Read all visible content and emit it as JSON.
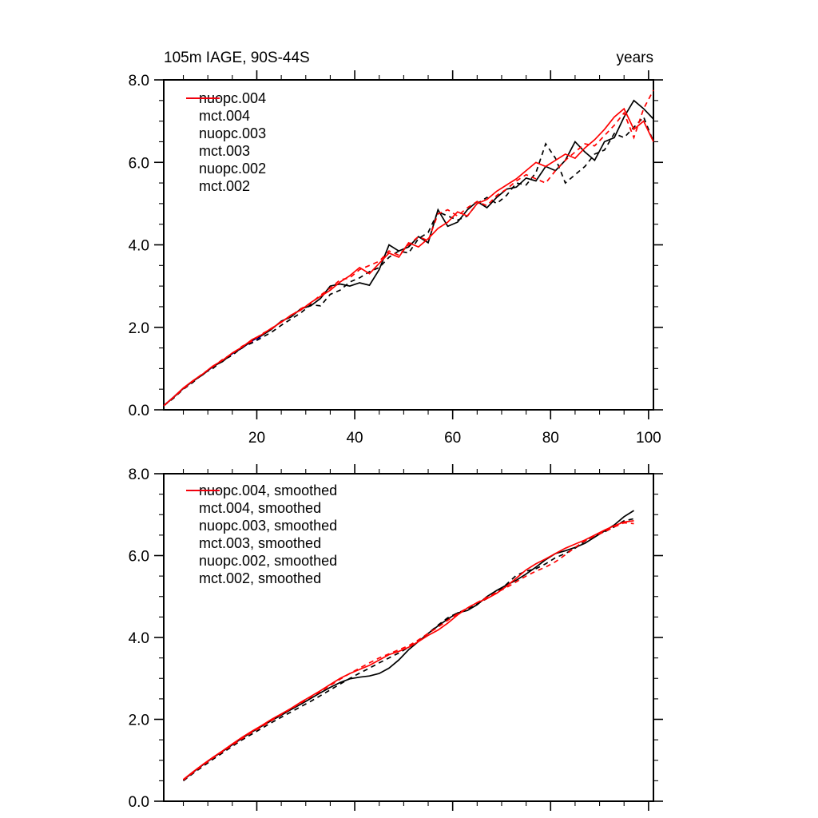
{
  "page": {
    "background": "#ffffff"
  },
  "colors": {
    "black": "#000000",
    "blue": "#0000ff",
    "red": "#ff0000",
    "axis": "#000000"
  },
  "chart_data": [
    {
      "type": "line",
      "title": "105m IAGE, 90S-44S",
      "right_label": "years",
      "xlim": [
        1,
        101
      ],
      "ylim": [
        0,
        8
      ],
      "x_ticks_major": [
        20,
        40,
        60,
        80,
        100
      ],
      "x_tick_labels": [
        "20",
        "40",
        "60",
        "80",
        "100"
      ],
      "x_tick_minor_step": 5,
      "y_ticks_major": [
        0,
        2,
        4,
        6,
        8
      ],
      "y_tick_labels": [
        "0.0",
        "2.0",
        "4.0",
        "6.0",
        "8.0"
      ],
      "y_tick_minor_step": 0.5,
      "show_x_labels": true,
      "grid": false,
      "legend_position": "top-left-inside",
      "series": [
        {
          "name": "nuopc.004",
          "color": "#000000",
          "dash": false,
          "x_start": 1,
          "x_step": 2,
          "values": [
            0.1,
            0.3,
            0.52,
            0.7,
            0.85,
            1.05,
            1.17,
            1.37,
            1.5,
            1.68,
            1.8,
            1.95,
            2.15,
            2.25,
            2.45,
            2.52,
            2.7,
            3.0,
            3.05,
            3.0,
            3.08,
            3.02,
            3.4,
            4.0,
            3.85,
            3.95,
            4.2,
            4.05,
            4.85,
            4.45,
            4.55,
            4.85,
            5.05,
            4.9,
            5.15,
            5.35,
            5.4,
            5.62,
            5.55,
            5.9,
            5.8,
            6.05,
            6.5,
            6.25,
            6.05,
            6.5,
            6.6,
            7.1,
            7.5,
            7.3,
            7.05
          ]
        },
        {
          "name": "mct.004",
          "color": "#000000",
          "dash": true,
          "x_start": 1,
          "x_step": 2,
          "values": [
            0.1,
            0.28,
            0.5,
            0.67,
            0.88,
            1.0,
            1.2,
            1.32,
            1.52,
            1.62,
            1.75,
            1.88,
            2.05,
            2.2,
            2.35,
            2.55,
            2.52,
            2.8,
            2.9,
            3.1,
            3.2,
            3.35,
            3.45,
            3.7,
            3.85,
            3.8,
            4.15,
            4.3,
            4.8,
            4.7,
            4.6,
            4.7,
            5.0,
            5.15,
            5.0,
            5.2,
            5.5,
            5.45,
            5.75,
            6.45,
            6.1,
            5.5,
            5.7,
            5.9,
            6.2,
            6.3,
            6.7,
            6.6,
            6.85,
            7.1,
            6.5
          ]
        },
        {
          "name": "nuopc.003",
          "color": "#0000ff",
          "dash": false,
          "x_start": 1,
          "x_step": 2,
          "values": [
            0.1,
            0.31,
            0.52,
            0.7,
            0.86,
            1.04,
            1.19,
            1.36,
            1.5,
            1.67,
            1.8
          ]
        },
        {
          "name": "mct.003",
          "color": "#0000ff",
          "dash": true,
          "x_start": 1,
          "x_step": 2,
          "values": [
            0.1,
            0.3,
            0.5,
            0.68,
            0.87,
            1.02,
            1.2,
            1.34,
            1.52,
            1.64,
            1.78
          ]
        },
        {
          "name": "nuopc.002",
          "color": "#ff0000",
          "dash": false,
          "x_start": 1,
          "x_step": 2,
          "values": [
            0.1,
            0.31,
            0.53,
            0.71,
            0.87,
            1.06,
            1.2,
            1.38,
            1.52,
            1.7,
            1.82,
            1.98,
            2.12,
            2.3,
            2.42,
            2.6,
            2.75,
            2.9,
            3.1,
            3.25,
            3.45,
            3.3,
            3.55,
            3.8,
            3.7,
            4.05,
            3.95,
            4.15,
            4.4,
            4.55,
            4.8,
            4.7,
            5.0,
            5.1,
            5.3,
            5.45,
            5.6,
            5.8,
            6.0,
            5.9,
            6.05,
            6.2,
            6.1,
            6.35,
            6.55,
            6.8,
            7.1,
            7.3,
            6.8,
            7.0,
            6.5
          ]
        },
        {
          "name": "mct.002",
          "color": "#ff0000",
          "dash": true,
          "x_start": 1,
          "x_step": 2,
          "values": [
            0.1,
            0.3,
            0.51,
            0.7,
            0.88,
            1.04,
            1.22,
            1.36,
            1.54,
            1.66,
            1.84,
            1.96,
            2.14,
            2.28,
            2.45,
            2.58,
            2.78,
            2.95,
            3.15,
            3.2,
            3.4,
            3.5,
            3.6,
            3.85,
            3.75,
            4.0,
            4.2,
            4.1,
            4.75,
            4.85,
            4.7,
            4.9,
            5.05,
            4.95,
            5.2,
            5.35,
            5.55,
            5.7,
            5.6,
            5.5,
            5.8,
            6.05,
            6.25,
            6.45,
            6.4,
            6.65,
            6.9,
            7.2,
            6.6,
            7.3,
            7.75
          ]
        }
      ]
    },
    {
      "type": "line",
      "title": "",
      "right_label": "",
      "xlim": [
        1,
        101
      ],
      "ylim": [
        0,
        8
      ],
      "x_ticks_major": [
        20,
        40,
        60,
        80,
        100
      ],
      "x_tick_labels": [],
      "x_tick_minor_step": 5,
      "y_ticks_major": [
        0,
        2,
        4,
        6,
        8
      ],
      "y_tick_labels": [
        "0.0",
        "2.0",
        "4.0",
        "6.0",
        "8.0"
      ],
      "y_tick_minor_step": 0.5,
      "show_x_labels": false,
      "grid": false,
      "legend_position": "top-left-inside",
      "series": [
        {
          "name": "nuopc.004, smoothed",
          "color": "#000000",
          "dash": false,
          "x_start": 5,
          "x_step": 2,
          "values": [
            0.52,
            0.71,
            0.89,
            1.06,
            1.22,
            1.38,
            1.54,
            1.69,
            1.83,
            1.97,
            2.1,
            2.24,
            2.37,
            2.51,
            2.65,
            2.78,
            2.9,
            2.99,
            3.03,
            3.06,
            3.12,
            3.25,
            3.45,
            3.7,
            3.9,
            4.1,
            4.28,
            4.45,
            4.6,
            4.66,
            4.8,
            5.0,
            5.15,
            5.28,
            5.4,
            5.55,
            5.72,
            5.9,
            6.05,
            6.12,
            6.2,
            6.3,
            6.45,
            6.6,
            6.75,
            6.95,
            7.1
          ]
        },
        {
          "name": "mct.004, smoothed",
          "color": "#000000",
          "dash": true,
          "x_start": 5,
          "x_step": 2,
          "values": [
            0.5,
            0.68,
            0.85,
            1.02,
            1.18,
            1.34,
            1.5,
            1.64,
            1.78,
            1.92,
            2.05,
            2.18,
            2.31,
            2.44,
            2.58,
            2.72,
            2.86,
            3.0,
            3.13,
            3.25,
            3.38,
            3.5,
            3.62,
            3.76,
            3.92,
            4.1,
            4.3,
            4.48,
            4.6,
            4.7,
            4.82,
            4.95,
            5.1,
            5.3,
            5.52,
            5.62,
            5.68,
            5.8,
            5.95,
            6.05,
            6.18,
            6.35,
            6.5,
            6.58,
            6.7,
            6.85,
            6.9
          ]
        },
        {
          "name": "nuopc.003, smoothed",
          "color": "#0000ff",
          "dash": false,
          "x_start": 5,
          "x_step": 2,
          "values": [
            0.52,
            0.71,
            0.89,
            1.06,
            1.22,
            1.38,
            1.54
          ]
        },
        {
          "name": "mct.003, smoothed",
          "color": "#0000ff",
          "dash": true,
          "x_start": 5,
          "x_step": 2,
          "values": [
            0.51,
            0.7,
            0.88,
            1.05,
            1.21,
            1.37,
            1.53
          ]
        },
        {
          "name": "nuopc.002, smoothed",
          "color": "#ff0000",
          "dash": false,
          "x_start": 5,
          "x_step": 2,
          "values": [
            0.53,
            0.72,
            0.9,
            1.07,
            1.23,
            1.4,
            1.56,
            1.71,
            1.85,
            2.0,
            2.13,
            2.27,
            2.42,
            2.56,
            2.7,
            2.85,
            3.0,
            3.12,
            3.22,
            3.32,
            3.45,
            3.58,
            3.66,
            3.76,
            3.9,
            4.05,
            4.18,
            4.35,
            4.55,
            4.72,
            4.85,
            4.95,
            5.08,
            5.25,
            5.45,
            5.65,
            5.8,
            5.92,
            6.05,
            6.18,
            6.28,
            6.38,
            6.5,
            6.62,
            6.73,
            6.82,
            6.85
          ]
        },
        {
          "name": "mct.002, smoothed",
          "color": "#ff0000",
          "dash": true,
          "x_start": 5,
          "x_step": 2,
          "values": [
            0.52,
            0.7,
            0.88,
            1.05,
            1.21,
            1.37,
            1.53,
            1.68,
            1.82,
            1.97,
            2.12,
            2.26,
            2.4,
            2.54,
            2.68,
            2.83,
            2.98,
            3.12,
            3.25,
            3.38,
            3.5,
            3.6,
            3.7,
            3.8,
            3.94,
            4.1,
            4.25,
            4.42,
            4.58,
            4.72,
            4.85,
            4.98,
            5.1,
            5.22,
            5.36,
            5.5,
            5.62,
            5.72,
            5.85,
            6.02,
            6.2,
            6.36,
            6.48,
            6.58,
            6.7,
            6.8,
            6.78
          ]
        }
      ]
    }
  ]
}
